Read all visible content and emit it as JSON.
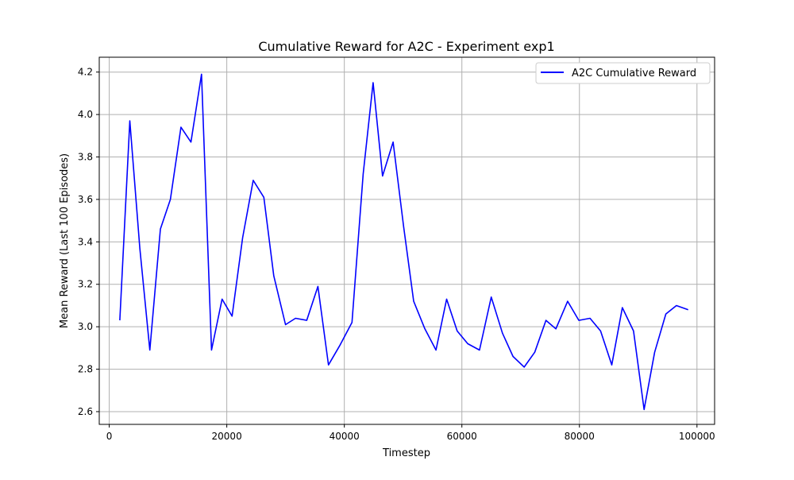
{
  "chart_data": {
    "type": "line",
    "title": "Cumulative Reward for A2C - Experiment exp1",
    "xlabel": "Timestep",
    "ylabel": "Mean Reward (Last 100 Episodes)",
    "xlim": [
      -1700,
      103000
    ],
    "ylim": [
      2.54,
      4.27
    ],
    "xticks": [
      0,
      20000,
      40000,
      60000,
      80000,
      100000
    ],
    "xtick_labels": [
      "0",
      "20000",
      "40000",
      "60000",
      "80000",
      "100000"
    ],
    "yticks": [
      2.6,
      2.8,
      3.0,
      3.2,
      3.4,
      3.6,
      3.8,
      4.0,
      4.2
    ],
    "ytick_labels": [
      "2.6",
      "2.8",
      "3.0",
      "3.2",
      "3.4",
      "3.6",
      "3.8",
      "4.0",
      "4.2"
    ],
    "grid": true,
    "legend_position": "top-right",
    "series": [
      {
        "name": "A2C Cumulative Reward",
        "color": "#0000ff",
        "x": [
          1800,
          3500,
          5200,
          6900,
          8700,
          10400,
          12200,
          13900,
          15700,
          17400,
          19200,
          20900,
          22700,
          24500,
          26300,
          28000,
          30000,
          31700,
          33600,
          35500,
          37300,
          39200,
          41300,
          43200,
          44900,
          46500,
          48300,
          50100,
          51800,
          53700,
          55600,
          57400,
          59200,
          61000,
          63000,
          65000,
          66900,
          68700,
          70600,
          72400,
          74300,
          76000,
          78000,
          79900,
          81800,
          83600,
          85500,
          87300,
          89200,
          91000,
          92800,
          94700,
          96500,
          98500
        ],
        "y": [
          3.03,
          3.97,
          3.37,
          2.89,
          3.46,
          3.6,
          3.94,
          3.87,
          4.19,
          2.89,
          3.13,
          3.05,
          3.42,
          3.69,
          3.61,
          3.24,
          3.01,
          3.04,
          3.03,
          3.19,
          2.82,
          2.91,
          3.02,
          3.72,
          4.15,
          3.71,
          3.87,
          3.47,
          3.12,
          2.99,
          2.89,
          3.13,
          2.98,
          2.92,
          2.89,
          3.14,
          2.97,
          2.86,
          2.81,
          2.88,
          3.03,
          2.99,
          3.12,
          3.03,
          3.04,
          2.98,
          2.82,
          3.09,
          2.98,
          2.61,
          2.88,
          3.06,
          3.1,
          3.08
        ]
      }
    ]
  }
}
